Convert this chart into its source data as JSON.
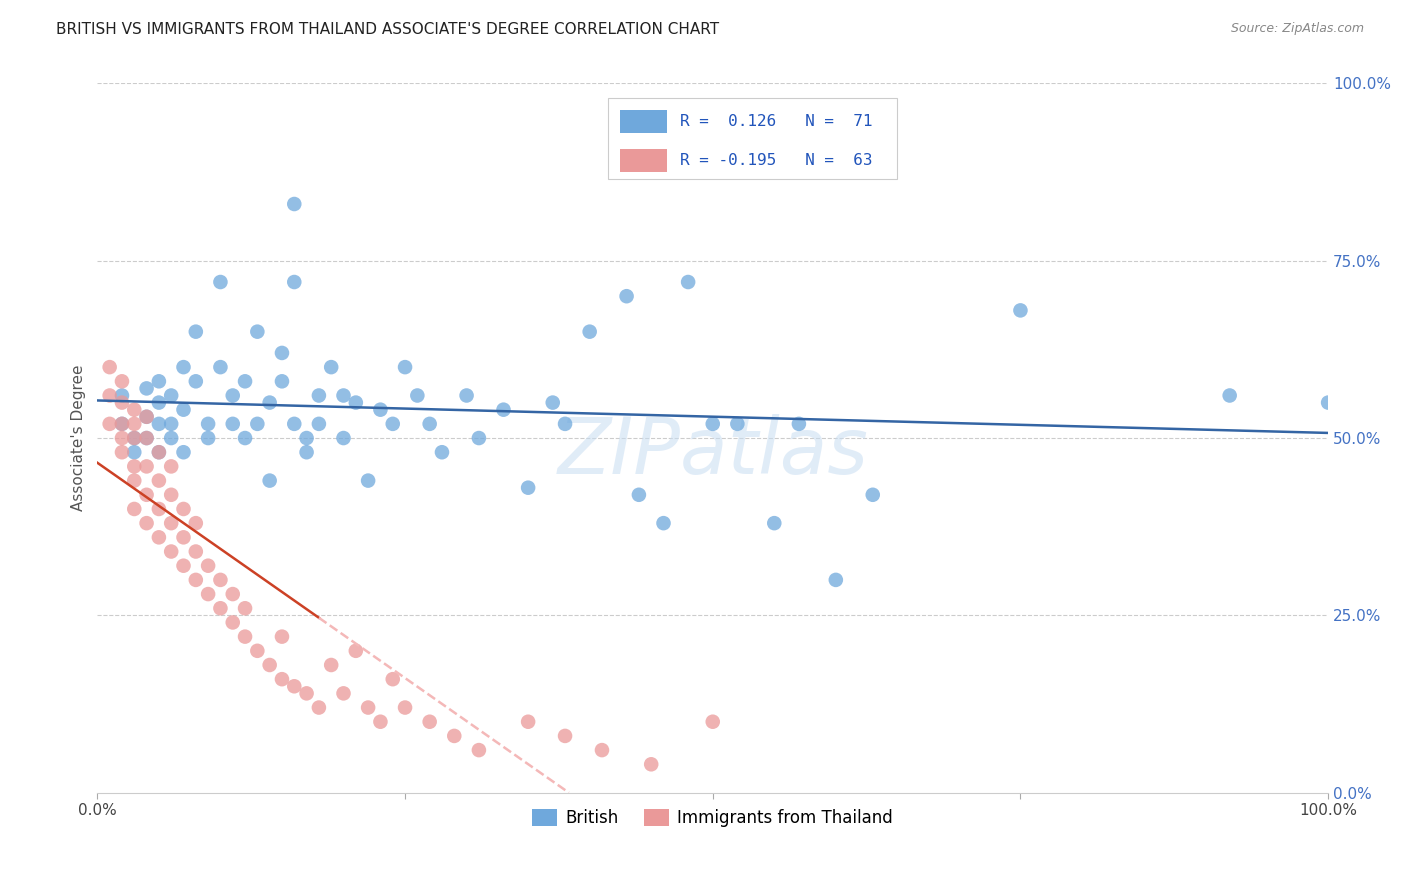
{
  "title": "BRITISH VS IMMIGRANTS FROM THAILAND ASSOCIATE'S DEGREE CORRELATION CHART",
  "source": "Source: ZipAtlas.com",
  "ylabel": "Associate's Degree",
  "watermark": "ZIPatlas",
  "legend_british": "British",
  "legend_thai": "Immigrants from Thailand",
  "r_british": 0.126,
  "n_british": 71,
  "r_thai": -0.195,
  "n_thai": 63,
  "british_color": "#6fa8dc",
  "thai_color": "#ea9999",
  "british_line_color": "#3465a4",
  "thai_line_color": "#cc4125",
  "thai_line_dash_color": "#f4b8b8",
  "xlim": [
    0.0,
    1.0
  ],
  "ylim": [
    0.0,
    1.0
  ],
  "background_color": "#ffffff",
  "grid_color": "#cccccc",
  "title_fontsize": 11,
  "axis_label_fontsize": 11,
  "tick_fontsize": 11,
  "british_x": [
    0.02,
    0.02,
    0.03,
    0.03,
    0.04,
    0.04,
    0.04,
    0.05,
    0.05,
    0.05,
    0.05,
    0.06,
    0.06,
    0.06,
    0.07,
    0.07,
    0.07,
    0.08,
    0.08,
    0.09,
    0.09,
    0.1,
    0.1,
    0.11,
    0.11,
    0.12,
    0.12,
    0.13,
    0.13,
    0.14,
    0.14,
    0.15,
    0.15,
    0.16,
    0.16,
    0.17,
    0.17,
    0.18,
    0.18,
    0.19,
    0.2,
    0.2,
    0.21,
    0.22,
    0.23,
    0.24,
    0.25,
    0.26,
    0.27,
    0.28,
    0.3,
    0.31,
    0.33,
    0.35,
    0.37,
    0.38,
    0.4,
    0.43,
    0.44,
    0.46,
    0.48,
    0.5,
    0.52,
    0.55,
    0.57,
    0.6,
    0.63,
    0.75,
    0.92,
    1.0,
    0.16
  ],
  "british_y": [
    0.56,
    0.52,
    0.5,
    0.48,
    0.5,
    0.53,
    0.57,
    0.48,
    0.52,
    0.55,
    0.58,
    0.5,
    0.52,
    0.56,
    0.48,
    0.54,
    0.6,
    0.58,
    0.65,
    0.5,
    0.52,
    0.6,
    0.72,
    0.52,
    0.56,
    0.5,
    0.58,
    0.65,
    0.52,
    0.44,
    0.55,
    0.58,
    0.62,
    0.83,
    0.52,
    0.5,
    0.48,
    0.56,
    0.52,
    0.6,
    0.56,
    0.5,
    0.55,
    0.44,
    0.54,
    0.52,
    0.6,
    0.56,
    0.52,
    0.48,
    0.56,
    0.5,
    0.54,
    0.43,
    0.55,
    0.52,
    0.65,
    0.7,
    0.42,
    0.38,
    0.72,
    0.52,
    0.52,
    0.38,
    0.52,
    0.3,
    0.42,
    0.68,
    0.56,
    0.55,
    0.72
  ],
  "thai_x": [
    0.01,
    0.01,
    0.01,
    0.02,
    0.02,
    0.02,
    0.02,
    0.02,
    0.03,
    0.03,
    0.03,
    0.03,
    0.03,
    0.03,
    0.04,
    0.04,
    0.04,
    0.04,
    0.04,
    0.05,
    0.05,
    0.05,
    0.05,
    0.06,
    0.06,
    0.06,
    0.06,
    0.07,
    0.07,
    0.07,
    0.08,
    0.08,
    0.08,
    0.09,
    0.09,
    0.1,
    0.1,
    0.11,
    0.11,
    0.12,
    0.12,
    0.13,
    0.14,
    0.15,
    0.15,
    0.16,
    0.17,
    0.18,
    0.19,
    0.2,
    0.21,
    0.22,
    0.23,
    0.24,
    0.25,
    0.27,
    0.29,
    0.31,
    0.35,
    0.38,
    0.41,
    0.45,
    0.5
  ],
  "thai_y": [
    0.52,
    0.56,
    0.6,
    0.48,
    0.5,
    0.52,
    0.55,
    0.58,
    0.4,
    0.44,
    0.46,
    0.5,
    0.52,
    0.54,
    0.38,
    0.42,
    0.46,
    0.5,
    0.53,
    0.36,
    0.4,
    0.44,
    0.48,
    0.34,
    0.38,
    0.42,
    0.46,
    0.32,
    0.36,
    0.4,
    0.3,
    0.34,
    0.38,
    0.28,
    0.32,
    0.26,
    0.3,
    0.24,
    0.28,
    0.22,
    0.26,
    0.2,
    0.18,
    0.16,
    0.22,
    0.15,
    0.14,
    0.12,
    0.18,
    0.14,
    0.2,
    0.12,
    0.1,
    0.16,
    0.12,
    0.1,
    0.08,
    0.06,
    0.1,
    0.08,
    0.06,
    0.04,
    0.1
  ]
}
